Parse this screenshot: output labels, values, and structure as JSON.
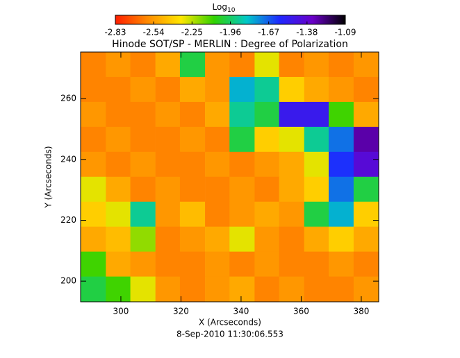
{
  "chart_data": {
    "type": "heatmap",
    "title": "Hinode SOT/SP - MERLIN : Degree of Polarization",
    "subtitle": "8-Sep-2010 11:30:06.553",
    "x_label": "X (Arcseconds)",
    "y_label": "Y (Arcseconds)",
    "colorbar_label": "Log",
    "colorbar_label_subscript": "10",
    "x": [
      290.8,
      299.1,
      307.3,
      315.6,
      323.8,
      332.1,
      340.3,
      348.6,
      356.8,
      365.1,
      373.3,
      381.6
    ],
    "y": [
      271.2,
      263.0,
      254.8,
      246.6,
      238.4,
      230.2,
      222.0,
      213.8,
      205.6,
      197.4
    ],
    "z": [
      [
        -2.6,
        -2.55,
        -2.6,
        -2.5,
        -2.0,
        -2.55,
        -2.6,
        -2.3,
        -2.6,
        -2.55,
        -2.6,
        -2.55
      ],
      [
        -2.6,
        -2.6,
        -2.55,
        -2.6,
        -2.5,
        -2.55,
        -1.8,
        -1.9,
        -2.4,
        -2.5,
        -2.55,
        -2.6
      ],
      [
        -2.55,
        -2.6,
        -2.6,
        -2.55,
        -2.6,
        -2.5,
        -1.9,
        -2.0,
        -1.5,
        -1.5,
        -2.1,
        -2.5
      ],
      [
        -2.6,
        -2.55,
        -2.6,
        -2.6,
        -2.55,
        -2.6,
        -2.0,
        -2.4,
        -2.3,
        -1.9,
        -1.7,
        -1.3
      ],
      [
        -2.55,
        -2.6,
        -2.55,
        -2.6,
        -2.6,
        -2.55,
        -2.6,
        -2.55,
        -2.5,
        -2.3,
        -1.6,
        -1.4
      ],
      [
        -2.3,
        -2.5,
        -2.6,
        -2.55,
        -2.6,
        -2.6,
        -2.55,
        -2.6,
        -2.5,
        -2.4,
        -1.7,
        -2.0
      ],
      [
        -2.4,
        -2.3,
        -1.9,
        -2.55,
        -2.45,
        -2.6,
        -2.55,
        -2.5,
        -2.55,
        -2.0,
        -1.8,
        -2.4
      ],
      [
        -2.5,
        -2.45,
        -2.2,
        -2.6,
        -2.55,
        -2.5,
        -2.3,
        -2.55,
        -2.6,
        -2.5,
        -2.4,
        -2.5
      ],
      [
        -2.1,
        -2.5,
        -2.55,
        -2.6,
        -2.6,
        -2.55,
        -2.6,
        -2.55,
        -2.6,
        -2.6,
        -2.55,
        -2.6
      ],
      [
        -2.0,
        -2.1,
        -2.3,
        -2.55,
        -2.6,
        -2.55,
        -2.5,
        -2.6,
        -2.55,
        -2.6,
        -2.6,
        -2.55
      ]
    ],
    "zlim": [
      -2.83,
      -1.09
    ],
    "colorscale": [
      "#ff1e00",
      "#ff8c00",
      "#ffe600",
      "#32d200",
      "#00c8c8",
      "#1e28ff",
      "#6a00c8",
      "#000000"
    ],
    "colorbar_ticks": [
      -2.83,
      -2.54,
      -2.25,
      -1.96,
      -1.67,
      -1.38,
      -1.09
    ],
    "xlim": [
      286.6,
      385.8
    ],
    "xticks": [
      300,
      320,
      340,
      360,
      380
    ],
    "ylim": [
      193.2,
      275.3
    ],
    "yticks": [
      200,
      220,
      240,
      260
    ]
  }
}
